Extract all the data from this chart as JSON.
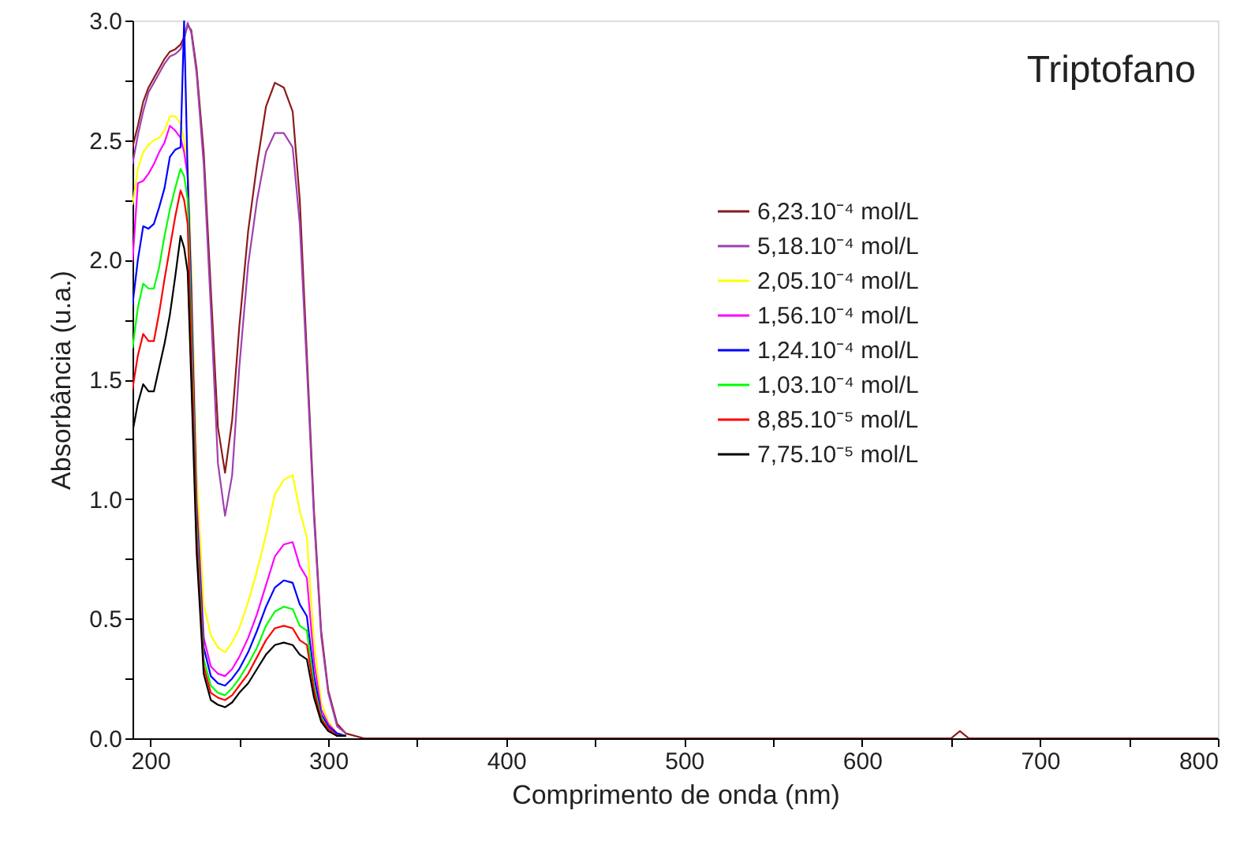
{
  "chart_data": {
    "type": "line",
    "title": "Triptofano",
    "xlabel": "Comprimento de onda (nm)",
    "ylabel": "Absorbância (u.a.)",
    "x": [
      190,
      193,
      196,
      199,
      202,
      205,
      208,
      211,
      214,
      217,
      219,
      221,
      223,
      226,
      230,
      234,
      238,
      242,
      246,
      250,
      255,
      260,
      265,
      270,
      275,
      280,
      284,
      288,
      292,
      296,
      300,
      305,
      310,
      320,
      400,
      500,
      600,
      650,
      655,
      660,
      700,
      800
    ],
    "series": [
      {
        "name": "6,23.10⁻⁴ mol/L",
        "color": "#8b1a1a",
        "values": [
          2.47,
          2.56,
          2.66,
          2.72,
          2.76,
          2.8,
          2.84,
          2.87,
          2.88,
          2.9,
          2.93,
          2.98,
          2.96,
          2.8,
          2.45,
          1.88,
          1.3,
          1.11,
          1.33,
          1.72,
          2.12,
          2.4,
          2.64,
          2.74,
          2.72,
          2.62,
          2.25,
          1.6,
          0.95,
          0.45,
          0.2,
          0.06,
          0.02,
          0,
          0,
          0,
          0,
          0,
          0.03,
          0,
          0,
          0
        ]
      },
      {
        "name": "5,18.10⁻⁴ mol/L",
        "color": "#a040b0",
        "values": [
          2.4,
          2.52,
          2.62,
          2.7,
          2.74,
          2.78,
          2.82,
          2.85,
          2.86,
          2.88,
          2.92,
          2.99,
          2.95,
          2.78,
          2.4,
          1.8,
          1.15,
          0.93,
          1.1,
          1.55,
          1.98,
          2.25,
          2.45,
          2.53,
          2.53,
          2.47,
          2.15,
          1.55,
          0.92,
          0.43,
          0.19,
          0.05,
          0.02,
          null,
          null,
          null,
          null,
          null,
          null,
          null,
          null,
          null
        ]
      },
      {
        "name": "2,05.10⁻⁴ mol/L",
        "color": "#ffff00",
        "values": [
          2.23,
          2.38,
          2.45,
          2.48,
          2.5,
          2.51,
          2.54,
          2.6,
          2.6,
          2.57,
          2.5,
          2.4,
          1.99,
          1.11,
          0.56,
          0.43,
          0.38,
          0.36,
          0.4,
          0.46,
          0.57,
          0.7,
          0.85,
          1.02,
          1.08,
          1.1,
          0.95,
          0.84,
          0.4,
          0.15,
          0.07,
          0.02,
          0.01,
          null,
          null,
          null,
          null,
          null,
          null,
          null,
          null,
          null
        ]
      },
      {
        "name": "1,56.10⁻⁴ mol/L",
        "color": "#ff00ff",
        "values": [
          1.99,
          2.32,
          2.33,
          2.36,
          2.4,
          2.45,
          2.49,
          2.56,
          2.54,
          2.51,
          2.45,
          2.35,
          1.9,
          1.0,
          0.42,
          0.3,
          0.27,
          0.26,
          0.29,
          0.34,
          0.42,
          0.52,
          0.64,
          0.76,
          0.81,
          0.82,
          0.72,
          0.67,
          0.32,
          0.12,
          0.06,
          0.02,
          0.01,
          null,
          null,
          null,
          null,
          null,
          null,
          null,
          null,
          null
        ]
      },
      {
        "name": "1,24.10⁻⁴ mol/L",
        "color": "#0000ff",
        "values": [
          1.81,
          2.0,
          2.14,
          2.13,
          2.15,
          2.22,
          2.3,
          2.43,
          2.46,
          2.47,
          3.0,
          2.35,
          1.85,
          0.95,
          0.38,
          0.26,
          0.23,
          0.22,
          0.25,
          0.29,
          0.36,
          0.45,
          0.55,
          0.63,
          0.66,
          0.65,
          0.56,
          0.51,
          0.26,
          0.1,
          0.05,
          0.02,
          0.01,
          null,
          null,
          null,
          null,
          null,
          null,
          null,
          null,
          null
        ]
      },
      {
        "name": "1,03.10⁻⁴ mol/L",
        "color": "#00ff00",
        "values": [
          1.63,
          1.8,
          1.9,
          1.88,
          1.88,
          1.97,
          2.1,
          2.21,
          2.3,
          2.38,
          2.35,
          2.25,
          1.75,
          0.9,
          0.33,
          0.22,
          0.19,
          0.18,
          0.21,
          0.25,
          0.31,
          0.38,
          0.47,
          0.53,
          0.55,
          0.54,
          0.47,
          0.45,
          0.22,
          0.09,
          0.04,
          0.01,
          0.01,
          null,
          null,
          null,
          null,
          null,
          null,
          null,
          null,
          null
        ]
      },
      {
        "name": "8,85.10⁻⁵ mol/L",
        "color": "#ff0000",
        "values": [
          1.46,
          1.6,
          1.69,
          1.66,
          1.66,
          1.78,
          1.92,
          2.05,
          2.18,
          2.29,
          2.25,
          2.15,
          1.65,
          0.85,
          0.3,
          0.19,
          0.17,
          0.16,
          0.18,
          0.22,
          0.27,
          0.34,
          0.41,
          0.46,
          0.47,
          0.46,
          0.41,
          0.39,
          0.2,
          0.08,
          0.04,
          0.01,
          0.01,
          null,
          null,
          null,
          null,
          null,
          null,
          null,
          null,
          null
        ]
      },
      {
        "name": "7,75.10⁻⁵ mol/L",
        "color": "#000000",
        "values": [
          1.28,
          1.4,
          1.48,
          1.45,
          1.45,
          1.55,
          1.65,
          1.77,
          1.93,
          2.1,
          2.05,
          1.95,
          1.5,
          0.78,
          0.27,
          0.16,
          0.14,
          0.13,
          0.15,
          0.19,
          0.23,
          0.29,
          0.35,
          0.39,
          0.4,
          0.39,
          0.35,
          0.33,
          0.17,
          0.07,
          0.03,
          0.01,
          0.01,
          null,
          null,
          null,
          null,
          null,
          null,
          null,
          null,
          null
        ]
      }
    ],
    "xlim": [
      190,
      800
    ],
    "xticks": [
      200,
      {
        "value": 250,
        "label": null
      },
      300,
      {
        "value": 350,
        "label": null
      },
      400,
      {
        "value": 450,
        "label": null
      },
      500,
      {
        "value": 550,
        "label": null
      },
      600,
      {
        "value": 650,
        "label": null
      },
      700,
      {
        "value": 750,
        "label": null
      },
      800
    ],
    "ylim": [
      0,
      3
    ],
    "yticks": [
      {
        "value": 0,
        "label": "0.0"
      },
      {
        "value": 0.25,
        "label": null
      },
      {
        "value": 0.5,
        "label": "0.5"
      },
      {
        "value": 0.75,
        "label": null
      },
      {
        "value": 1,
        "label": "1.0"
      },
      {
        "value": 1.25,
        "label": null
      },
      {
        "value": 1.5,
        "label": "1.5"
      },
      {
        "value": 1.75,
        "label": null
      },
      {
        "value": 2,
        "label": "2.0"
      },
      {
        "value": 2.25,
        "label": null
      },
      {
        "value": 2.5,
        "label": "2.5"
      },
      {
        "value": 2.75,
        "label": null
      },
      {
        "value": 3,
        "label": "3.0"
      }
    ],
    "grid": false,
    "legend": "top right",
    "marker": "none",
    "line_style": "solid"
  }
}
